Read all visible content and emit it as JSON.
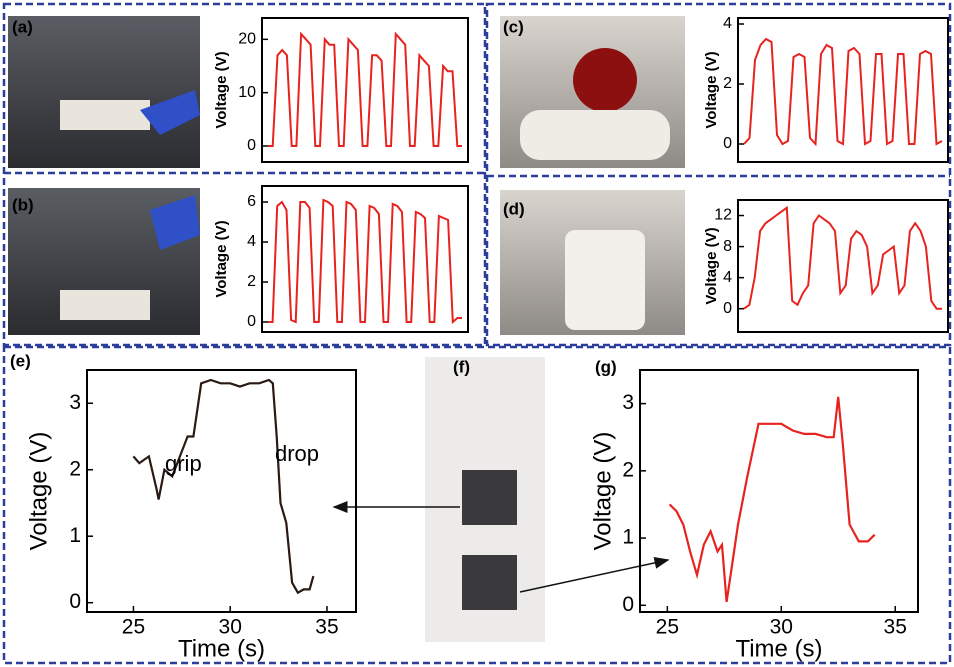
{
  "chart_data": [
    {
      "type": "line",
      "panel": "(a)",
      "y_label": "Voltage (V)",
      "color": "#e8231f",
      "values": [
        0,
        0,
        17,
        18,
        17,
        0,
        0,
        21,
        20,
        19,
        0,
        0,
        20,
        19,
        19,
        0,
        0,
        20,
        19,
        18,
        0,
        0,
        17,
        17,
        16,
        0,
        0,
        21,
        20,
        19,
        0,
        0,
        17,
        16,
        15,
        0,
        0,
        15,
        14,
        14,
        0,
        0
      ],
      "ylim": [
        -3,
        24
      ],
      "yticks": [
        0,
        10,
        20
      ]
    },
    {
      "type": "line",
      "panel": "(b)",
      "y_label": "Voltage (V)",
      "color": "#e8231f",
      "values": [
        0,
        0,
        5.8,
        6,
        5.6,
        0.1,
        0,
        6,
        6,
        5.7,
        0,
        0,
        6.1,
        6,
        5.8,
        0,
        0,
        6,
        5.9,
        5.6,
        0,
        0,
        5.8,
        5.7,
        5.4,
        0,
        0,
        5.9,
        5.8,
        5.5,
        0,
        0,
        5.5,
        5.4,
        5.2,
        0,
        0,
        5.3,
        5.2,
        5.1,
        0,
        0.2,
        0.2
      ],
      "ylim": [
        -0.5,
        6.8
      ],
      "yticks": [
        0,
        2,
        4,
        6
      ]
    },
    {
      "type": "line",
      "panel": "(c)",
      "y_label": "Voltage (V)",
      "color": "#e8231f",
      "values": [
        0,
        0.2,
        2.8,
        3.3,
        3.5,
        3.4,
        0.3,
        0,
        0.1,
        2.9,
        3,
        2.9,
        0.2,
        0,
        3,
        3.3,
        3.2,
        0.1,
        0,
        3.1,
        3.2,
        3,
        0,
        0.1,
        3,
        3,
        0,
        0.1,
        3,
        3,
        0,
        0,
        3,
        3.1,
        3,
        0,
        0.1
      ],
      "ylim": [
        -0.6,
        4.2
      ],
      "yticks": [
        0,
        2,
        4
      ]
    },
    {
      "type": "line",
      "panel": "(d)",
      "y_label": "Voltage (V)",
      "color": "#e8231f",
      "values": [
        0,
        0.5,
        4,
        10,
        11,
        11.5,
        12,
        12.5,
        13,
        1,
        0.5,
        2,
        3,
        11,
        12,
        11.5,
        11,
        10,
        2,
        3,
        9,
        10,
        9.5,
        8,
        2,
        3,
        7,
        7.5,
        8,
        2,
        3,
        10,
        11,
        10,
        8,
        1,
        0,
        0
      ],
      "ylim": [
        -3,
        14
      ],
      "yticks": [
        0,
        4,
        8,
        12
      ]
    },
    {
      "type": "line",
      "panel": "(e)",
      "x_label": "Time (s)",
      "y_label": "Voltage (V)",
      "color": "#2a1a14",
      "annotations": [
        "grip",
        "drop"
      ],
      "x": [
        25,
        25.3,
        25.8,
        26.2,
        26.3,
        26.6,
        27,
        27.4,
        27.8,
        28.1,
        28.5,
        29,
        29.5,
        30,
        30.5,
        31,
        31.5,
        32,
        32.2,
        32.4,
        32.6,
        32.9,
        33.2,
        33.5,
        33.8,
        34.1,
        34.3
      ],
      "values": [
        2.2,
        2.1,
        2.2,
        1.7,
        1.55,
        2,
        1.9,
        2.2,
        2.5,
        2.5,
        3.3,
        3.35,
        3.3,
        3.3,
        3.25,
        3.3,
        3.3,
        3.35,
        3.3,
        2.5,
        1.5,
        1.2,
        0.3,
        0.15,
        0.2,
        0.2,
        0.4
      ],
      "xlim": [
        22.6,
        36.5
      ],
      "xticks": [
        25,
        30,
        35
      ],
      "ylim": [
        -0.14,
        3.5
      ],
      "yticks": [
        0,
        1,
        2,
        3
      ]
    },
    {
      "type": "line",
      "panel": "(g)",
      "x_label": "Time (s)",
      "y_label": "Voltage (V)",
      "color": "#e8231f",
      "x": [
        25.1,
        25.4,
        25.7,
        26,
        26.3,
        26.6,
        26.9,
        27.2,
        27.4,
        27.6,
        27.8,
        28.1,
        28.5,
        29,
        29.5,
        30,
        30.5,
        31,
        31.5,
        32,
        32.3,
        32.5,
        32.7,
        33,
        33.4,
        33.8,
        34.1
      ],
      "values": [
        1.5,
        1.4,
        1.2,
        0.8,
        0.45,
        0.9,
        1.1,
        0.8,
        0.9,
        0.05,
        0.5,
        1.2,
        1.9,
        2.7,
        2.7,
        2.7,
        2.6,
        2.55,
        2.55,
        2.5,
        2.5,
        3.1,
        2.4,
        1.2,
        0.95,
        0.95,
        1.05
      ],
      "xlim": [
        23.8,
        36.0
      ],
      "xticks": [
        25,
        30,
        35
      ],
      "ylim": [
        -0.1,
        3.5
      ],
      "yticks": [
        0,
        1,
        2,
        3
      ]
    }
  ],
  "photo_panel": {
    "label": "(f)"
  }
}
